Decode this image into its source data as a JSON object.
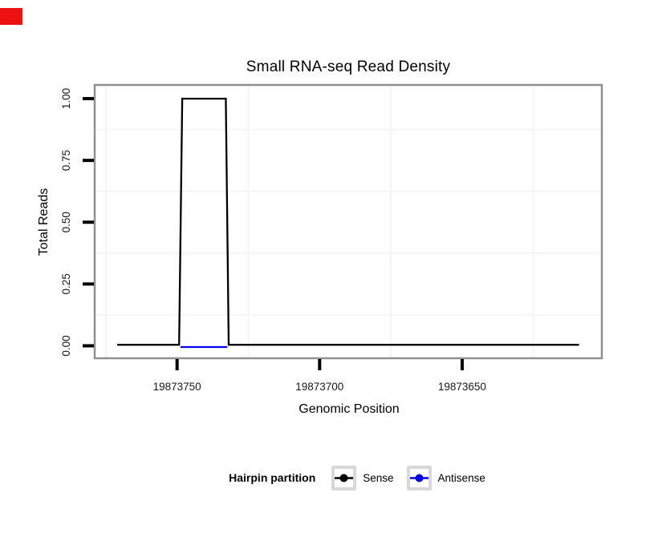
{
  "marker": {
    "color": "#ee1111"
  },
  "chart_data": {
    "type": "line",
    "title": "Small RNA-seq Read Density",
    "xlabel": "Genomic Position",
    "ylabel": "Total Reads",
    "x_axis": {
      "reversed": true,
      "ticks": [
        19873750,
        19873700,
        19873650
      ],
      "tick_labels": [
        "19873750",
        "19873700",
        "19873650"
      ],
      "range_left_to_right": [
        19873778.9,
        19873601.0
      ],
      "minor_gridlines": [
        19873775,
        19873725,
        19873675,
        19873625
      ]
    },
    "y_axis": {
      "ticks": [
        0.0,
        0.25,
        0.5,
        0.75,
        1.0
      ],
      "tick_labels": [
        "0.00",
        "0.25",
        "0.50",
        "0.75",
        "1.00"
      ],
      "range_bottom_to_top": [
        -0.0504,
        1.0553
      ],
      "minor_gridlines": [
        0.125,
        0.375,
        0.625,
        0.875
      ]
    },
    "series": [
      {
        "name": "Sense",
        "color": "#000000",
        "points": [
          [
            19873771,
            0.004
          ],
          [
            19873749.3,
            0.004
          ],
          [
            19873748.2,
            1.0
          ],
          [
            19873732.9,
            1.0
          ],
          [
            19873731.9,
            0.004
          ],
          [
            19873609,
            0.004
          ]
        ]
      },
      {
        "name": "Antisense",
        "color": "#0000ee",
        "points": [
          [
            19873748.8,
            -0.005
          ],
          [
            19873732.4,
            -0.005
          ]
        ]
      }
    ],
    "legend": {
      "position": "bottom",
      "title": "Hairpin partition",
      "items": [
        {
          "label": "Sense",
          "color": "#000000"
        },
        {
          "label": "Antisense",
          "color": "#0000ee"
        }
      ]
    },
    "panel": {
      "background": "#ffffff",
      "border_color": "#909090",
      "minor_grid_color": "#f5f5f5",
      "tick_color": "#000000",
      "tick_label_color": "#1a1a1a"
    }
  }
}
